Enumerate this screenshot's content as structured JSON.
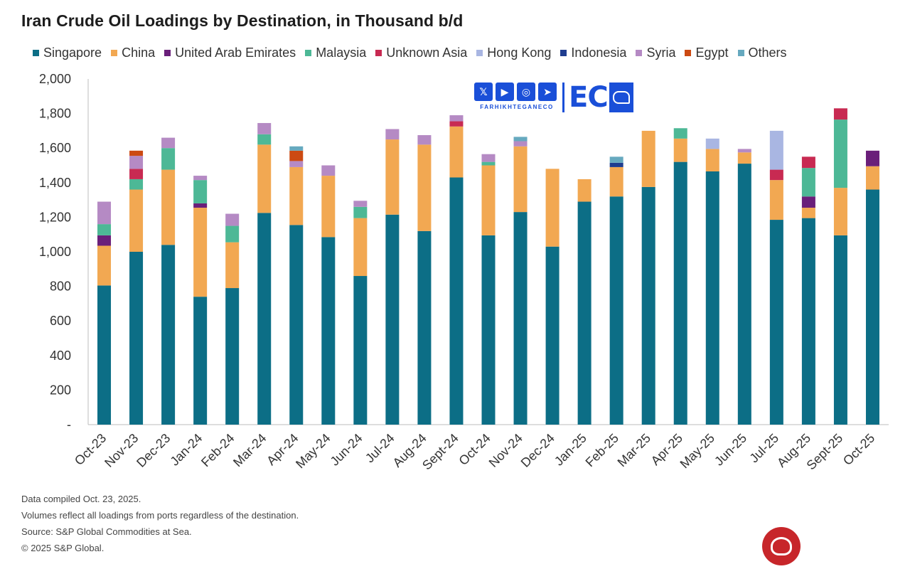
{
  "chart_data": {
    "type": "bar",
    "stacked": true,
    "title": "Iran Crude Oil Loadings by Destination, in Thousand b/d",
    "ylim": [
      0,
      2000
    ],
    "yticks": [
      0,
      200,
      400,
      600,
      800,
      1000,
      1200,
      1400,
      1600,
      1800,
      2000
    ],
    "ytick_labels": [
      "-",
      "200",
      "400",
      "600",
      "800",
      "1,000",
      "1,200",
      "1,400",
      "1,600",
      "1,800",
      "2,000"
    ],
    "categories": [
      "Oct-23",
      "Nov-23",
      "Dec-23",
      "Jan-24",
      "Feb-24",
      "Mar-24",
      "Apr-24",
      "May-24",
      "Jun-24",
      "Jul-24",
      "Aug-24",
      "Sept-24",
      "Oct-24",
      "Nov-24",
      "Dec-24",
      "Jan-25",
      "Feb-25",
      "Mar-25",
      "Apr-25",
      "May-25",
      "Jun-25",
      "Jul-25",
      "Aug-25",
      "Sept-25",
      "Oct-25"
    ],
    "legend_position": "top",
    "grid": false,
    "series": [
      {
        "name": "Singapore",
        "color": "#0c6e86",
        "values": [
          805,
          1000,
          1040,
          740,
          790,
          1225,
          1155,
          1085,
          860,
          1215,
          1120,
          1430,
          1095,
          1230,
          1030,
          1290,
          1320,
          1375,
          1520,
          1465,
          1510,
          1185,
          1195,
          1095,
          1360
        ]
      },
      {
        "name": "China",
        "color": "#f2a852",
        "values": [
          230,
          360,
          435,
          515,
          265,
          395,
          335,
          355,
          335,
          435,
          500,
          295,
          405,
          380,
          450,
          130,
          170,
          325,
          135,
          130,
          65,
          230,
          60,
          275,
          135
        ]
      },
      {
        "name": "United Arab Emirates",
        "color": "#6a1f7a",
        "values": [
          60,
          0,
          0,
          25,
          0,
          0,
          0,
          0,
          0,
          0,
          0,
          0,
          0,
          0,
          0,
          0,
          0,
          0,
          0,
          0,
          0,
          0,
          65,
          0,
          90
        ]
      },
      {
        "name": "Malaysia",
        "color": "#4db896",
        "values": [
          65,
          60,
          125,
          135,
          95,
          60,
          0,
          0,
          65,
          0,
          0,
          0,
          20,
          0,
          0,
          0,
          0,
          0,
          60,
          0,
          0,
          0,
          165,
          395,
          0
        ]
      },
      {
        "name": "Unknown Asia",
        "color": "#c82a52",
        "values": [
          0,
          60,
          0,
          0,
          0,
          0,
          0,
          0,
          0,
          0,
          0,
          30,
          0,
          0,
          0,
          0,
          0,
          0,
          0,
          0,
          0,
          60,
          65,
          65,
          0
        ]
      },
      {
        "name": "Hong Kong",
        "color": "#a9b6e2",
        "values": [
          0,
          0,
          0,
          0,
          0,
          0,
          0,
          0,
          0,
          0,
          0,
          0,
          0,
          0,
          0,
          0,
          0,
          0,
          0,
          60,
          0,
          225,
          0,
          0,
          0
        ]
      },
      {
        "name": "Indonesia",
        "color": "#1f3d8f",
        "values": [
          0,
          0,
          0,
          0,
          0,
          0,
          0,
          0,
          0,
          0,
          0,
          0,
          0,
          0,
          0,
          0,
          25,
          0,
          0,
          0,
          0,
          0,
          0,
          0,
          0
        ]
      },
      {
        "name": "Syria",
        "color": "#b58ac4",
        "values": [
          130,
          75,
          60,
          25,
          70,
          65,
          35,
          60,
          35,
          60,
          55,
          35,
          45,
          30,
          0,
          0,
          0,
          0,
          0,
          0,
          20,
          0,
          0,
          0,
          0
        ]
      },
      {
        "name": "Egypt",
        "color": "#cc4a12",
        "values": [
          0,
          30,
          0,
          0,
          0,
          0,
          60,
          0,
          0,
          0,
          0,
          0,
          0,
          0,
          0,
          0,
          0,
          0,
          0,
          0,
          0,
          0,
          0,
          0,
          0
        ]
      },
      {
        "name": "Others",
        "color": "#66a9bf",
        "values": [
          0,
          0,
          0,
          0,
          0,
          0,
          25,
          0,
          0,
          0,
          0,
          0,
          0,
          25,
          0,
          0,
          35,
          0,
          0,
          0,
          0,
          0,
          0,
          0,
          0
        ]
      }
    ]
  },
  "notes": [
    "Data compiled Oct. 23, 2025.",
    "Volumes reflect all loadings from ports regardless of the destination.",
    "Source: S&P Global Commodities at Sea.",
    "© 2025 S&P Global."
  ],
  "watermark": {
    "brand_name": "FARHIKHTEGANECO",
    "brand_mark": "EC",
    "icons": [
      "x-icon",
      "youtube-icon",
      "instagram-icon",
      "telegram-icon"
    ]
  }
}
